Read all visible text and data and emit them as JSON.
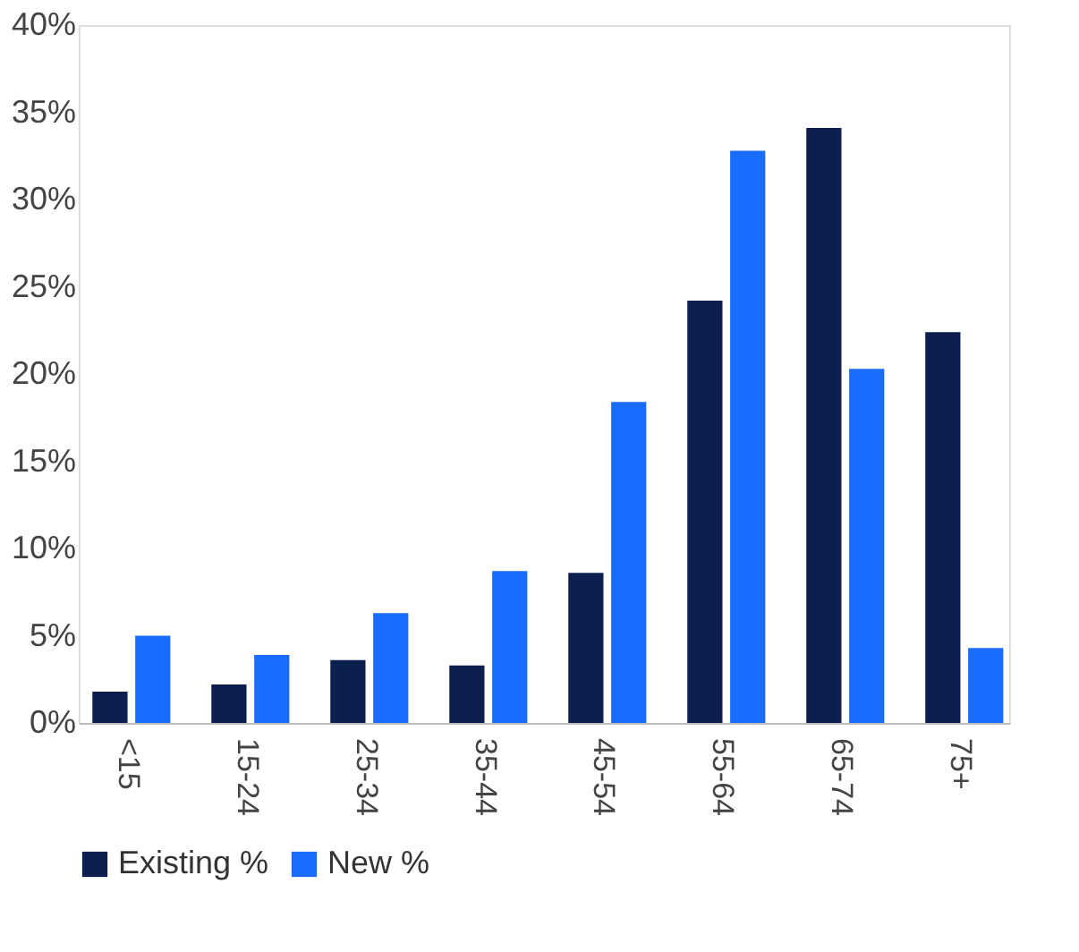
{
  "chart_data": {
    "type": "bar",
    "categories": [
      "<15",
      "15-24",
      "25-34",
      "35-44",
      "45-54",
      "55-64",
      "65-74",
      "75+"
    ],
    "series": [
      {
        "name": "Existing %",
        "color": "#0c1f4f",
        "values": [
          1.8,
          2.2,
          3.6,
          3.3,
          8.6,
          24.2,
          34.1,
          22.4
        ]
      },
      {
        "name": "New %",
        "color": "#1a6cff",
        "values": [
          5.0,
          3.9,
          6.3,
          8.7,
          18.4,
          32.8,
          20.3,
          4.3
        ]
      }
    ],
    "ylim": [
      0,
      40
    ],
    "yticks": [
      {
        "value": 0,
        "label": "0%"
      },
      {
        "value": 5,
        "label": "5%"
      },
      {
        "value": 10,
        "label": "10%"
      },
      {
        "value": 15,
        "label": "15%"
      },
      {
        "value": 20,
        "label": "20%"
      },
      {
        "value": 25,
        "label": "25%"
      },
      {
        "value": 30,
        "label": "30%"
      },
      {
        "value": 35,
        "label": "35%"
      },
      {
        "value": 40,
        "label": "40%"
      }
    ],
    "grid": false,
    "legend": "bottom"
  }
}
